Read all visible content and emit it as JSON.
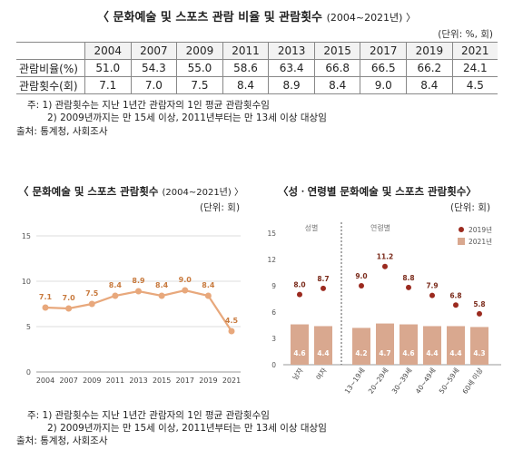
{
  "top": {
    "title": "〈 문화예술 및 스포츠 관람 비율 및 관람횟수",
    "title_sub": "(2004~2021년) 〉",
    "unit": "(단위: %, 회)",
    "years": [
      "2004",
      "2007",
      "2009",
      "2011",
      "2013",
      "2015",
      "2017",
      "2019",
      "2021"
    ],
    "rows": [
      {
        "label": "관람비율(%)",
        "values": [
          "51.0",
          "54.3",
          "55.0",
          "58.6",
          "63.4",
          "66.8",
          "66.5",
          "66.2",
          "24.1"
        ]
      },
      {
        "label": "관람횟수(회)",
        "values": [
          "7.1",
          "7.0",
          "7.5",
          "8.4",
          "8.9",
          "8.4",
          "9.0",
          "8.4",
          "4.5"
        ]
      }
    ],
    "notes": [
      "주: 1) 관람횟수는 지난 1년간 관람자의 1인 평균 관람횟수임",
      "2) 2009년까지는 만 15세 이상, 2011년부터는 만 13세 이상 대상임",
      "출처: 통계청, 사회조사"
    ]
  },
  "chart_data": [
    {
      "type": "line",
      "title": "〈 문화예술 및 스포츠 관람횟수",
      "title_sub": "(2004~2021년) 〉",
      "unit": "(단위: 회)",
      "x": [
        "2004",
        "2007",
        "2009",
        "2011",
        "2013",
        "2015",
        "2017",
        "2019",
        "2021"
      ],
      "values": [
        7.1,
        7.0,
        7.5,
        8.4,
        8.9,
        8.4,
        9.0,
        8.4,
        4.5
      ],
      "ylim": [
        0,
        15
      ],
      "yticks": [
        0,
        5,
        10,
        15
      ],
      "grid": true,
      "color": "#E8A87C"
    },
    {
      "type": "bar",
      "title": "〈성ㆍ연령별 문화예술 및 스포츠 관람횟수〉",
      "unit": "(단위: 회)",
      "groups": [
        {
          "label": "성별",
          "categories": [
            "남자",
            "여자"
          ]
        },
        {
          "label": "연령별",
          "categories": [
            "13~19세",
            "20~29세",
            "30~39세",
            "40~49세",
            "50~59세",
            "60세 이상"
          ]
        }
      ],
      "categories": [
        "남자",
        "여자",
        "13~19세",
        "20~29세",
        "30~39세",
        "40~49세",
        "50~59세",
        "60세 이상"
      ],
      "series": [
        {
          "name": "2019년",
          "kind": "dot",
          "values": [
            8.0,
            8.7,
            9.0,
            11.2,
            8.8,
            7.9,
            6.8,
            5.8
          ],
          "color": "#9B2A1F"
        },
        {
          "name": "2021년",
          "kind": "bar",
          "values": [
            4.6,
            4.4,
            4.2,
            4.7,
            4.6,
            4.4,
            4.4,
            4.3
          ],
          "color": "#D9A88F"
        }
      ],
      "ylim": [
        0,
        15
      ],
      "yticks": [
        0,
        3,
        6,
        9,
        12,
        15
      ],
      "legend": "top-right"
    }
  ],
  "bottom_notes": [
    "주: 1) 관람횟수는 지난 1년간 관람자의 1인 평균 관람횟수임",
    "2) 2009년까지는 만 15세 이상, 2011년부터는 만 13세 이상 대상임",
    "출처: 통계청, 사회조사"
  ]
}
